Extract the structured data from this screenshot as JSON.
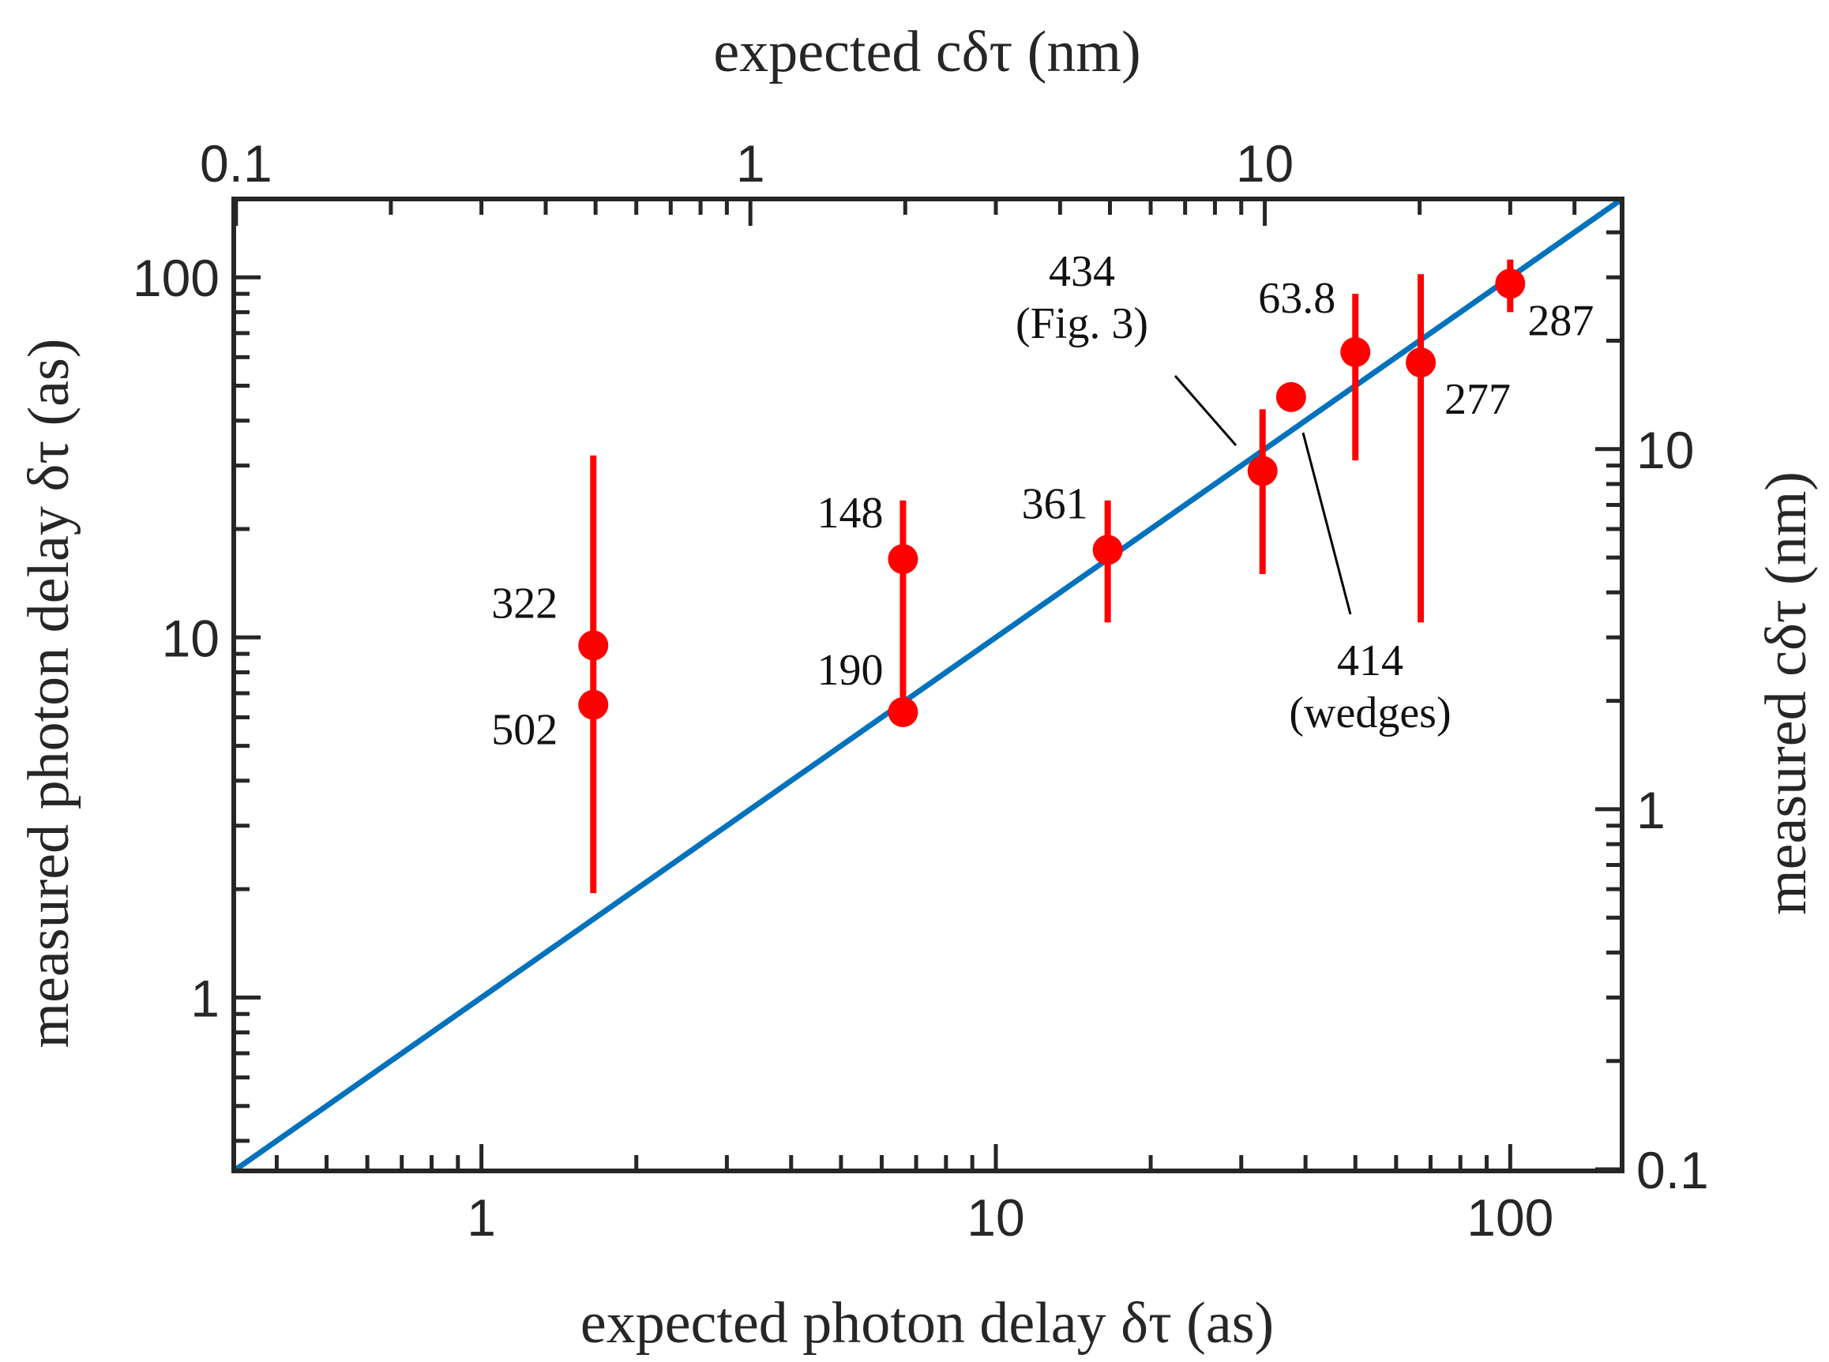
{
  "chart_data": {
    "type": "scatter",
    "x_scale": "log",
    "y_scale": "log",
    "xlim": [
      0.33,
      165
    ],
    "ylim": [
      0.33,
      165
    ],
    "xlabel": "expected photon delay δτ (as)",
    "ylabel": "measured photon delay δτ (as)",
    "x2label": "expected cδτ (nm)",
    "y2label": "measured cδτ (nm)",
    "x_ticks": [
      {
        "value": 1,
        "label": "1"
      },
      {
        "value": 10,
        "label": "10"
      },
      {
        "value": 100,
        "label": "100"
      }
    ],
    "y_ticks": [
      {
        "value": 1,
        "label": "1"
      },
      {
        "value": 10,
        "label": "10"
      },
      {
        "value": 100,
        "label": "100"
      }
    ],
    "x2_ticks": [
      {
        "value": 0.1,
        "label": "0.1"
      },
      {
        "value": 1,
        "label": "1"
      },
      {
        "value": 10,
        "label": "10"
      }
    ],
    "y2_ticks": [
      {
        "value": 0.1,
        "label": "0.1"
      },
      {
        "value": 1,
        "label": "1"
      },
      {
        "value": 10,
        "label": "10"
      }
    ],
    "reference_line": {
      "kind": "y = x",
      "color": "#0072BD"
    },
    "marker_color": "#FF0000",
    "points": [
      {
        "label": "322",
        "x": 1.65,
        "y": 9.5,
        "y_err": [
          1.95,
          32
        ]
      },
      {
        "label": "502",
        "x": 1.65,
        "y": 6.5
      },
      {
        "label": "148",
        "x": 6.6,
        "y": 16.5,
        "y_err": [
          6.2,
          24
        ]
      },
      {
        "label": "190",
        "x": 6.6,
        "y": 6.2
      },
      {
        "label": "361",
        "x": 16.5,
        "y": 17.5,
        "y_err": [
          11,
          24
        ]
      },
      {
        "label": "434\n(Fig. 3)",
        "x": 33,
        "y": 29,
        "y_err": [
          15,
          43
        ]
      },
      {
        "label": "414\n(wedges)",
        "x": 37.5,
        "y": 46.5
      },
      {
        "label": "63.8",
        "x": 50,
        "y": 62,
        "y_err": [
          31,
          90
        ]
      },
      {
        "label": "277",
        "x": 67,
        "y": 58,
        "y_err": [
          11,
          102
        ]
      },
      {
        "label": "287",
        "x": 100,
        "y": 96,
        "y_err": [
          80,
          112
        ]
      }
    ]
  }
}
